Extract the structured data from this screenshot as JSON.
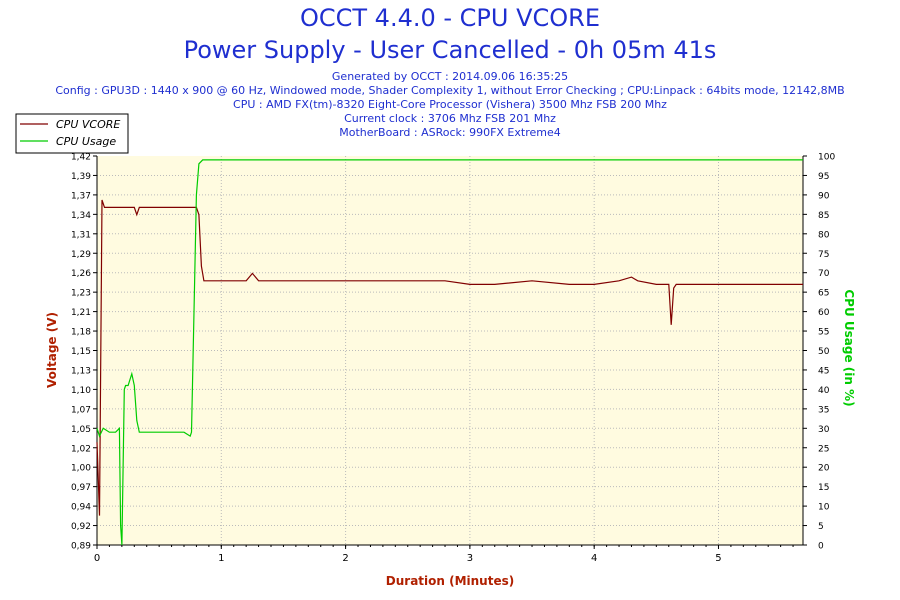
{
  "header": {
    "title": "OCCT 4.4.0 - CPU VCORE",
    "subtitle": "Power Supply - User Cancelled - 0h 05m 41s",
    "info_lines": [
      "Generated by OCCT : 2014.09.06 16:35:25",
      "Config : GPU3D : 1440 x 900 @ 60 Hz, Windowed mode, Shader Complexity 1, without Error Checking ; CPU:Linpack : 64bits mode, 12142,8MB",
      "CPU : AMD FX(tm)-8320 Eight-Core Processor (Vishera) 3500 Mhz FSB 200 Mhz",
      "Current clock : 3706 Mhz FSB 201 Mhz",
      "MotherBoard : ASRock: 990FX Extreme4"
    ]
  },
  "colors": {
    "plot_bg": "#fffbe0",
    "vcore": "#800000",
    "usage": "#00cc00",
    "title": "#1f2fd0",
    "axis_label": "#b02000"
  },
  "chart_data": {
    "type": "line",
    "xlabel": "Duration (Minutes)",
    "ylabel": "Voltage (V)",
    "y2label": "CPU Usage (in %)",
    "xlim": [
      0,
      5.68
    ],
    "ylim": [
      0.89,
      1.42
    ],
    "y2lim": [
      0,
      100
    ],
    "x_ticks": [
      "0",
      "1",
      "2",
      "3",
      "4",
      "5"
    ],
    "y_ticks": [
      "0,89",
      "0,92",
      "0,94",
      "0,97",
      "1,00",
      "1,02",
      "1,05",
      "1,07",
      "1,10",
      "1,13",
      "1,15",
      "1,18",
      "1,21",
      "1,23",
      "1,26",
      "1,29",
      "1,31",
      "1,34",
      "1,37",
      "1,39",
      "1,42"
    ],
    "y2_ticks": [
      "0",
      "5",
      "10",
      "15",
      "20",
      "25",
      "30",
      "35",
      "40",
      "45",
      "50",
      "55",
      "60",
      "65",
      "70",
      "75",
      "80",
      "85",
      "90",
      "95",
      "100"
    ],
    "grid": true,
    "legend_position": "top-left",
    "series": [
      {
        "name": "CPU VCORE",
        "axis": "left",
        "x": [
          0,
          0.02,
          0.04,
          0.06,
          0.08,
          0.1,
          0.2,
          0.3,
          0.32,
          0.34,
          0.38,
          0.5,
          0.6,
          0.7,
          0.8,
          0.82,
          0.84,
          0.86,
          0.9,
          1.0,
          1.1,
          1.2,
          1.25,
          1.3,
          1.5,
          1.7,
          1.9,
          2.0,
          2.2,
          2.5,
          2.8,
          3.0,
          3.2,
          3.5,
          3.8,
          4.0,
          4.2,
          4.3,
          4.35,
          4.5,
          4.6,
          4.62,
          4.64,
          4.66,
          4.7,
          4.8,
          5.0,
          5.3,
          5.6,
          5.68
        ],
        "values": [
          1.03,
          0.93,
          1.36,
          1.35,
          1.35,
          1.35,
          1.35,
          1.35,
          1.34,
          1.35,
          1.35,
          1.35,
          1.35,
          1.35,
          1.35,
          1.34,
          1.27,
          1.25,
          1.25,
          1.25,
          1.25,
          1.25,
          1.26,
          1.25,
          1.25,
          1.25,
          1.25,
          1.25,
          1.25,
          1.25,
          1.25,
          1.245,
          1.245,
          1.25,
          1.245,
          1.245,
          1.25,
          1.255,
          1.25,
          1.245,
          1.245,
          1.19,
          1.24,
          1.245,
          1.245,
          1.245,
          1.245,
          1.245,
          1.245,
          1.245
        ]
      },
      {
        "name": "CPU Usage",
        "axis": "right",
        "x": [
          0,
          0.02,
          0.05,
          0.1,
          0.15,
          0.18,
          0.19,
          0.2,
          0.22,
          0.23,
          0.25,
          0.28,
          0.3,
          0.32,
          0.34,
          0.36,
          0.4,
          0.5,
          0.6,
          0.7,
          0.75,
          0.76,
          0.78,
          0.8,
          0.82,
          0.85,
          0.9,
          1.0,
          1.2,
          1.5,
          2.0,
          2.5,
          3.0,
          3.5,
          4.0,
          4.5,
          5.0,
          5.5,
          5.68
        ],
        "values": [
          30,
          28,
          30,
          29,
          29,
          30,
          5,
          0,
          40,
          41,
          41,
          44,
          41,
          32,
          29,
          29,
          29,
          29,
          29,
          29,
          28,
          29,
          60,
          90,
          98,
          99,
          99,
          99,
          99,
          99,
          99,
          99,
          99,
          99,
          99,
          99,
          99,
          99,
          99
        ]
      }
    ]
  }
}
